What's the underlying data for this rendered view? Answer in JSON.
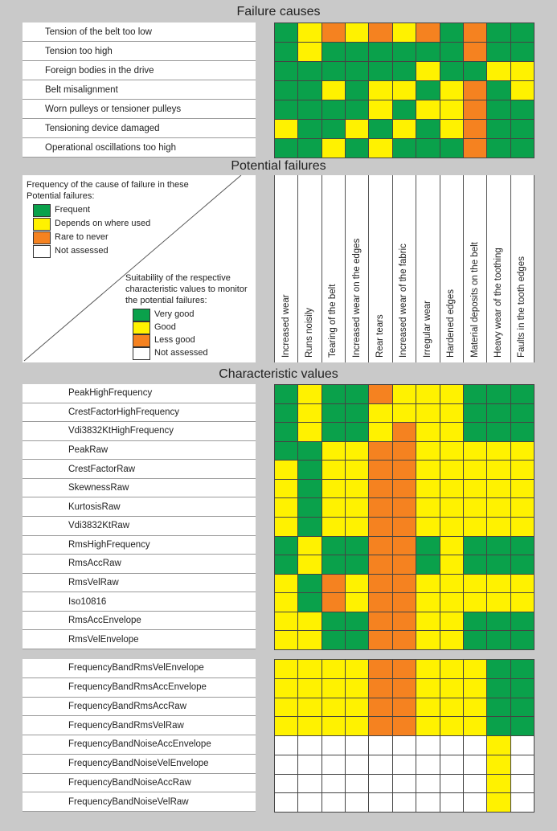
{
  "titles": {
    "failure_causes": "Failure causes",
    "potential_failures": "Potential failures",
    "characteristic_values": "Characteristic values"
  },
  "legend": {
    "frequency_heading": "Frequency of the cause of failure in these Potential failures:",
    "frequency_items": [
      "Frequent",
      "Depends on where used",
      "Rare to never",
      "Not assessed"
    ],
    "suitability_heading": "Suitability of the respective characteristic values to monitor the potential failures:",
    "suitability_items": [
      "Very good",
      "Good",
      "Less good",
      "Not assessed"
    ]
  },
  "colors": {
    "G": "#0aa14b",
    "Y": "#fff200",
    "O": "#f58220",
    "W": "#ffffff"
  },
  "potential_failures": [
    "Increased wear",
    "Runs noisily",
    "Tearing of the belt",
    "Increased wear on the edges",
    "Rear tears",
    "Increased wear of the fabric",
    "Irregular wear",
    "Hardened edges",
    "Material deposits on the belt",
    "Heavy wear of the toothing",
    "Faults in the tooth edges"
  ],
  "failure_causes": [
    {
      "label": "Tension of the belt too low",
      "cells": [
        "G",
        "Y",
        "O",
        "Y",
        "O",
        "Y",
        "O",
        "G",
        "O",
        "G",
        "G"
      ]
    },
    {
      "label": "Tension too high",
      "cells": [
        "G",
        "Y",
        "G",
        "G",
        "G",
        "G",
        "G",
        "G",
        "O",
        "G",
        "G"
      ]
    },
    {
      "label": "Foreign bodies in the drive",
      "cells": [
        "G",
        "G",
        "G",
        "G",
        "G",
        "G",
        "Y",
        "G",
        "G",
        "Y",
        "Y"
      ]
    },
    {
      "label": "Belt misalignment",
      "cells": [
        "G",
        "G",
        "Y",
        "G",
        "Y",
        "Y",
        "G",
        "Y",
        "O",
        "G",
        "Y"
      ]
    },
    {
      "label": "Worn pulleys or tensioner pulleys",
      "cells": [
        "G",
        "G",
        "G",
        "G",
        "Y",
        "G",
        "Y",
        "Y",
        "O",
        "G",
        "G"
      ]
    },
    {
      "label": "Tensioning device damaged",
      "cells": [
        "Y",
        "G",
        "G",
        "Y",
        "G",
        "Y",
        "G",
        "Y",
        "O",
        "G",
        "G"
      ]
    },
    {
      "label": "Operational oscillations too high",
      "cells": [
        "G",
        "G",
        "Y",
        "G",
        "Y",
        "G",
        "G",
        "G",
        "O",
        "G",
        "G"
      ]
    }
  ],
  "characteristic_values": [
    {
      "label": "PeakHighFrequency",
      "cells": [
        "G",
        "Y",
        "G",
        "G",
        "O",
        "Y",
        "Y",
        "Y",
        "G",
        "G",
        "G"
      ]
    },
    {
      "label": "CrestFactorHighFrequency",
      "cells": [
        "G",
        "Y",
        "G",
        "G",
        "Y",
        "Y",
        "Y",
        "Y",
        "G",
        "G",
        "G"
      ]
    },
    {
      "label": "Vdi3832KtHighFrequency",
      "cells": [
        "G",
        "Y",
        "G",
        "G",
        "Y",
        "O",
        "Y",
        "Y",
        "G",
        "G",
        "G"
      ]
    },
    {
      "label": "PeakRaw",
      "cells": [
        "G",
        "G",
        "Y",
        "Y",
        "O",
        "O",
        "Y",
        "Y",
        "Y",
        "Y",
        "Y"
      ]
    },
    {
      "label": "CrestFactorRaw",
      "cells": [
        "Y",
        "G",
        "Y",
        "Y",
        "O",
        "O",
        "Y",
        "Y",
        "Y",
        "Y",
        "Y"
      ]
    },
    {
      "label": "SkewnessRaw",
      "cells": [
        "Y",
        "G",
        "Y",
        "Y",
        "O",
        "O",
        "Y",
        "Y",
        "Y",
        "Y",
        "Y"
      ]
    },
    {
      "label": "KurtosisRaw",
      "cells": [
        "Y",
        "G",
        "Y",
        "Y",
        "O",
        "O",
        "Y",
        "Y",
        "Y",
        "Y",
        "Y"
      ]
    },
    {
      "label": "Vdi3832KtRaw",
      "cells": [
        "Y",
        "G",
        "Y",
        "Y",
        "O",
        "O",
        "Y",
        "Y",
        "Y",
        "Y",
        "Y"
      ]
    },
    {
      "label": "RmsHighFrequency",
      "cells": [
        "G",
        "Y",
        "G",
        "G",
        "O",
        "O",
        "G",
        "Y",
        "G",
        "G",
        "G"
      ]
    },
    {
      "label": "RmsAccRaw",
      "cells": [
        "G",
        "Y",
        "G",
        "G",
        "O",
        "O",
        "G",
        "Y",
        "G",
        "G",
        "G"
      ]
    },
    {
      "label": "RmsVelRaw",
      "cells": [
        "Y",
        "G",
        "O",
        "Y",
        "O",
        "O",
        "Y",
        "Y",
        "Y",
        "Y",
        "Y"
      ]
    },
    {
      "label": "Iso10816",
      "cells": [
        "Y",
        "G",
        "O",
        "Y",
        "O",
        "O",
        "Y",
        "Y",
        "Y",
        "Y",
        "Y"
      ]
    },
    {
      "label": "RmsAccEnvelope",
      "cells": [
        "Y",
        "Y",
        "G",
        "G",
        "O",
        "O",
        "Y",
        "Y",
        "G",
        "G",
        "G"
      ]
    },
    {
      "label": "RmsVelEnvelope",
      "cells": [
        "Y",
        "Y",
        "G",
        "G",
        "O",
        "O",
        "Y",
        "Y",
        "G",
        "G",
        "G"
      ]
    }
  ],
  "frequency_band_values": [
    {
      "label": "FrequencyBandRmsVelEnvelope",
      "cells": [
        "Y",
        "Y",
        "Y",
        "Y",
        "O",
        "O",
        "Y",
        "Y",
        "Y",
        "G",
        "G"
      ]
    },
    {
      "label": "FrequencyBandRmsAccEnvelope",
      "cells": [
        "Y",
        "Y",
        "Y",
        "Y",
        "O",
        "O",
        "Y",
        "Y",
        "Y",
        "G",
        "G"
      ]
    },
    {
      "label": "FrequencyBandRmsAccRaw",
      "cells": [
        "Y",
        "Y",
        "Y",
        "Y",
        "O",
        "O",
        "Y",
        "Y",
        "Y",
        "G",
        "G"
      ]
    },
    {
      "label": "FrequencyBandRmsVelRaw",
      "cells": [
        "Y",
        "Y",
        "Y",
        "Y",
        "O",
        "O",
        "Y",
        "Y",
        "Y",
        "G",
        "G"
      ]
    },
    {
      "label": "FrequencyBandNoiseAccEnvelope",
      "cells": [
        "W",
        "W",
        "W",
        "W",
        "W",
        "W",
        "W",
        "W",
        "W",
        "Y",
        "W"
      ]
    },
    {
      "label": "FrequencyBandNoiseVelEnvelope",
      "cells": [
        "W",
        "W",
        "W",
        "W",
        "W",
        "W",
        "W",
        "W",
        "W",
        "Y",
        "W"
      ]
    },
    {
      "label": "FrequencyBandNoiseAccRaw",
      "cells": [
        "W",
        "W",
        "W",
        "W",
        "W",
        "W",
        "W",
        "W",
        "W",
        "Y",
        "W"
      ]
    },
    {
      "label": "FrequencyBandNoiseVelRaw",
      "cells": [
        "W",
        "W",
        "W",
        "W",
        "W",
        "W",
        "W",
        "W",
        "W",
        "Y",
        "W"
      ]
    }
  ]
}
